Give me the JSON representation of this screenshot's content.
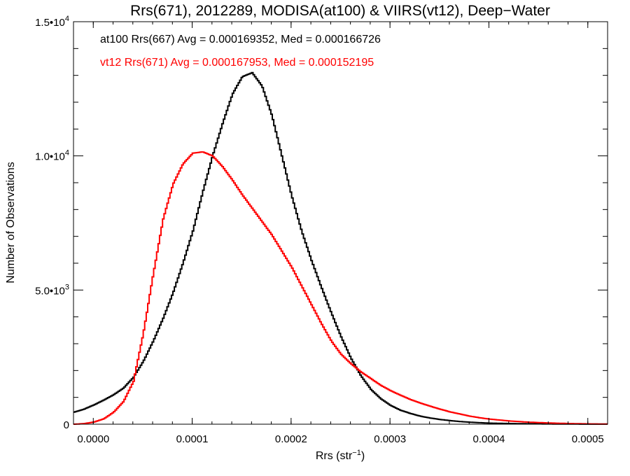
{
  "chart_data": {
    "type": "line",
    "title": "Rrs(671), 2012289, MODISA(at100) & VIIRS(vt12), Deep−Water",
    "xlabel": "Rrs (str",
    "xlabel_sup": "−1",
    "xlabel_close": ")",
    "ylabel": "Number of Observations",
    "xlim": [
      -2e-05,
      0.00052
    ],
    "ylim": [
      0,
      15000
    ],
    "grid": false,
    "x_ticks": [
      {
        "value": 0.0,
        "label": "0.0000"
      },
      {
        "value": 0.0001,
        "label": "0.0001"
      },
      {
        "value": 0.0002,
        "label": "0.0002"
      },
      {
        "value": 0.0003,
        "label": "0.0003"
      },
      {
        "value": 0.0004,
        "label": "0.0004"
      },
      {
        "value": 0.0005,
        "label": "0.0005"
      }
    ],
    "y_ticks": [
      {
        "value": 0,
        "mantissa": "0",
        "exp": ""
      },
      {
        "value": 5000,
        "mantissa": "5.0•10",
        "exp": "3"
      },
      {
        "value": 10000,
        "mantissa": "1.0•10",
        "exp": "4"
      },
      {
        "value": 15000,
        "mantissa": "1.5•10",
        "exp": "4"
      }
    ],
    "annotations": [
      {
        "text": "at100 Rrs(667) Avg = 0.000169352, Med = 0.000166726",
        "color": "#000000"
      },
      {
        "text": "vt12 Rrs(671) Avg = 0.000167953, Med = 0.000152195",
        "color": "#ff0000"
      }
    ],
    "series": [
      {
        "color": "#000000",
        "x": [
          -2e-05,
          -1e-05,
          0,
          1e-05,
          2e-05,
          3e-05,
          4e-05,
          5e-05,
          6e-05,
          7e-05,
          8e-05,
          9e-05,
          0.0001,
          0.00011,
          0.00012,
          0.00013,
          0.00014,
          0.00015,
          0.00016,
          0.00017,
          0.00018,
          0.00019,
          0.0002,
          0.00021,
          0.00022,
          0.00023,
          0.00024,
          0.00025,
          0.00026,
          0.00027,
          0.00028,
          0.00029,
          0.0003,
          0.00031,
          0.00032,
          0.00033,
          0.00034,
          0.00035,
          0.00036,
          0.00037,
          0.00038,
          0.00039,
          0.0004,
          0.00042,
          0.00044,
          0.00046,
          0.00048,
          0.0005,
          0.00052
        ],
        "y": [
          450,
          560,
          720,
          900,
          1100,
          1350,
          1750,
          2350,
          3100,
          3950,
          4900,
          6000,
          7200,
          8650,
          10000,
          11200,
          12300,
          12950,
          13100,
          12600,
          11500,
          10000,
          8500,
          7200,
          6100,
          5100,
          4150,
          3250,
          2450,
          1800,
          1300,
          950,
          700,
          520,
          400,
          300,
          230,
          175,
          135,
          100,
          75,
          55,
          40,
          25,
          15,
          10,
          5,
          3,
          2
        ]
      },
      {
        "color": "#ff0000",
        "x": [
          -2e-05,
          -1e-05,
          0,
          1e-05,
          2e-05,
          3e-05,
          4e-05,
          5e-05,
          6e-05,
          7e-05,
          8e-05,
          9e-05,
          0.0001,
          0.00011,
          0.00012,
          0.00013,
          0.00014,
          0.00015,
          0.00016,
          0.00017,
          0.00018,
          0.00019,
          0.0002,
          0.00021,
          0.00022,
          0.00023,
          0.00024,
          0.00025,
          0.00026,
          0.00027,
          0.00028,
          0.00029,
          0.0003,
          0.00031,
          0.00032,
          0.00033,
          0.00034,
          0.00035,
          0.00036,
          0.00037,
          0.00038,
          0.00039,
          0.0004,
          0.00042,
          0.00044,
          0.00046,
          0.00048,
          0.0005,
          0.00052
        ],
        "y": [
          0,
          20,
          80,
          200,
          450,
          850,
          1600,
          3400,
          5600,
          7650,
          8950,
          9700,
          10100,
          10150,
          10000,
          9600,
          9100,
          8550,
          8050,
          7550,
          7050,
          6450,
          5850,
          5150,
          4450,
          3750,
          3100,
          2600,
          2250,
          1950,
          1700,
          1450,
          1250,
          1080,
          920,
          790,
          670,
          560,
          460,
          380,
          300,
          240,
          190,
          120,
          75,
          45,
          25,
          12,
          5
        ]
      }
    ]
  }
}
